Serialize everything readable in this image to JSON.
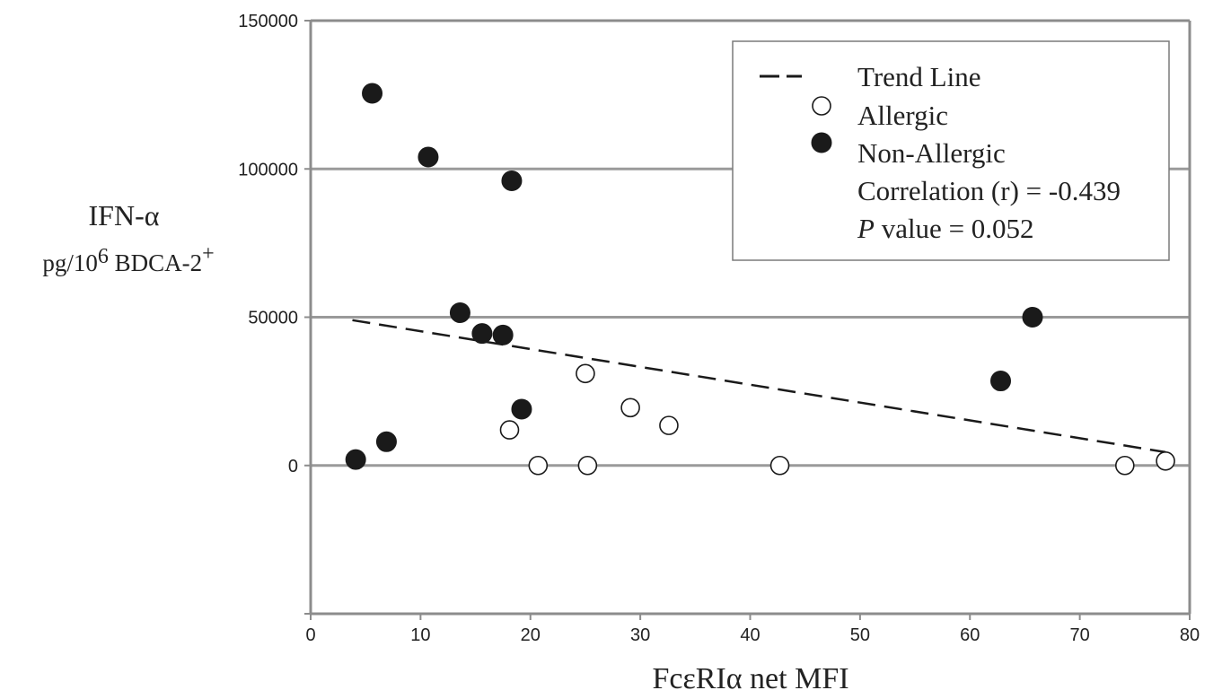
{
  "chart_data": {
    "type": "scatter",
    "title": "",
    "xlabel": "FcεRIα net MFI",
    "ylabel": "IFN-α",
    "ylabel_sub": "pg/10",
    "ylabel_sub_sup": "6",
    "ylabel_sub_rest": " BDCA-2",
    "ylabel_sub_sup2": "+",
    "xlim": [
      0,
      80
    ],
    "ylim": [
      -50000,
      150000
    ],
    "x_ticks": [
      0,
      10,
      20,
      30,
      40,
      50,
      60,
      70,
      80
    ],
    "y_ticks": [
      0,
      50000,
      100000,
      150000
    ],
    "grid": "horizontal",
    "legend_position": "top-right",
    "legend": {
      "trend_label": "Trend Line",
      "allergic_label": "Allergic",
      "nonallergic_label": "Non-Allergic",
      "correlation_text": "Correlation (r) = -0.439",
      "p_symbol": "P",
      "p_text": " value = 0.052"
    },
    "series": [
      {
        "name": "Allergic",
        "marker": "open-circle",
        "points": [
          [
            18.1,
            12000
          ],
          [
            20.7,
            0
          ],
          [
            25.0,
            31000
          ],
          [
            25.2,
            0
          ],
          [
            29.1,
            19500
          ],
          [
            32.6,
            13500
          ],
          [
            42.7,
            0
          ],
          [
            74.1,
            0
          ],
          [
            77.8,
            1500
          ]
        ]
      },
      {
        "name": "Non-Allergic",
        "marker": "filled-circle",
        "points": [
          [
            4.1,
            2000
          ],
          [
            5.6,
            125500
          ],
          [
            6.9,
            8000
          ],
          [
            10.7,
            104000
          ],
          [
            13.6,
            51500
          ],
          [
            15.6,
            44500
          ],
          [
            17.5,
            44000
          ],
          [
            18.3,
            96000
          ],
          [
            19.2,
            19000
          ],
          [
            62.8,
            28500
          ],
          [
            65.7,
            50000
          ]
        ]
      }
    ],
    "trend_line": {
      "name": "Trend Line",
      "style": "dashed",
      "points": [
        [
          3.8,
          49000
        ],
        [
          77.8,
          4500
        ]
      ]
    }
  },
  "colors": {
    "axis": "#8c8c8c",
    "grid": "#9a9a9a",
    "marker_fill": "#1a1a1a",
    "marker_open_fill": "#ffffff",
    "text": "#222222"
  }
}
